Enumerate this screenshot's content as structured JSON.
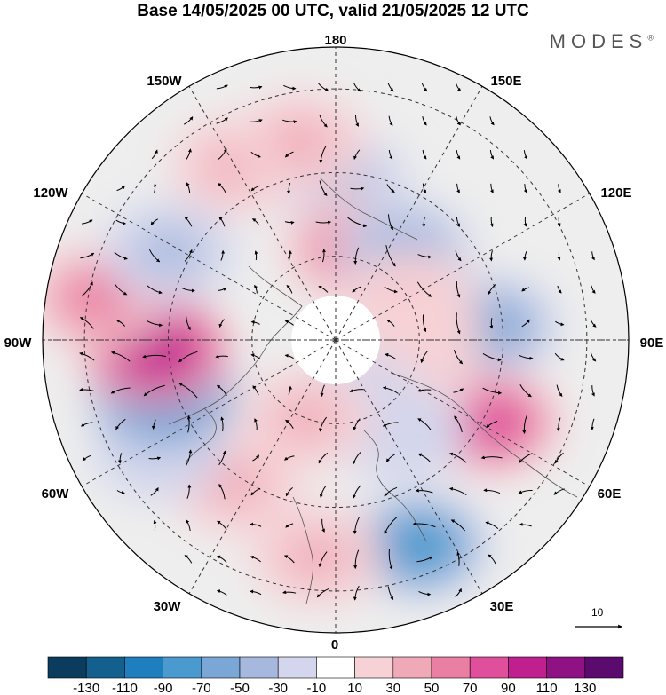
{
  "title": "Base 14/05/2025 00 UTC, valid 21/05/2025 12 UTC",
  "brand": "MODES",
  "brand_mark": "®",
  "meridian_labels": {
    "m180": "180",
    "e150": "150E",
    "w150": "150W",
    "w120": "120W",
    "e120": "120E",
    "w90": "90W",
    "e90": "90E",
    "w60": "60W",
    "e60": "60E",
    "w30": "30W",
    "e30": "30E",
    "m0": "0"
  },
  "reference_vector_label": "10",
  "colorbar": {
    "tick_labels": [
      "-130",
      "-110",
      "-90",
      "-70",
      "-50",
      "-30",
      "-10",
      "10",
      "30",
      "50",
      "70",
      "90",
      "110",
      "130"
    ],
    "colors": [
      "#0b3c5d",
      "#13608f",
      "#1f7fbe",
      "#4a9ad0",
      "#7aa7d6",
      "#a7b8de",
      "#d3d6ec",
      "#ffffff",
      "#f6d2d6",
      "#f0a9b6",
      "#ea7fa4",
      "#e04f9c",
      "#c0208f",
      "#8e1283",
      "#5b0a6e"
    ]
  },
  "anomaly_centers": [
    {
      "lon": 178,
      "lat": 52,
      "value": -40
    },
    {
      "lon": 170,
      "lat": 68,
      "value": 65
    },
    {
      "lon": 142,
      "lat": 63,
      "value": -45
    },
    {
      "lon": 95,
      "lat": 53,
      "value": -55
    },
    {
      "lon": 118,
      "lat": 70,
      "value": 35
    },
    {
      "lon": 95,
      "lat": 70,
      "value": 25
    },
    {
      "lon": 62,
      "lat": 48,
      "value": 85
    },
    {
      "lon": 60,
      "lat": 70,
      "value": 20
    },
    {
      "lon": 35,
      "lat": 63,
      "value": -30
    },
    {
      "lon": 22,
      "lat": 37,
      "value": -80
    },
    {
      "lon": -5,
      "lat": 38,
      "value": 40
    },
    {
      "lon": 18,
      "lat": 75,
      "value": -20
    },
    {
      "lon": -20,
      "lat": 70,
      "value": 30
    },
    {
      "lon": -35,
      "lat": 48,
      "value": 35
    },
    {
      "lon": -58,
      "lat": 40,
      "value": -30
    },
    {
      "lon": -72,
      "lat": 47,
      "value": -90
    },
    {
      "lon": -87,
      "lat": 47,
      "value": 100
    },
    {
      "lon": -100,
      "lat": 32,
      "value": 55
    },
    {
      "lon": -118,
      "lat": 45,
      "value": -40
    },
    {
      "lon": -150,
      "lat": 42,
      "value": 30
    },
    {
      "lon": -170,
      "lat": 42,
      "value": 35
    }
  ]
}
